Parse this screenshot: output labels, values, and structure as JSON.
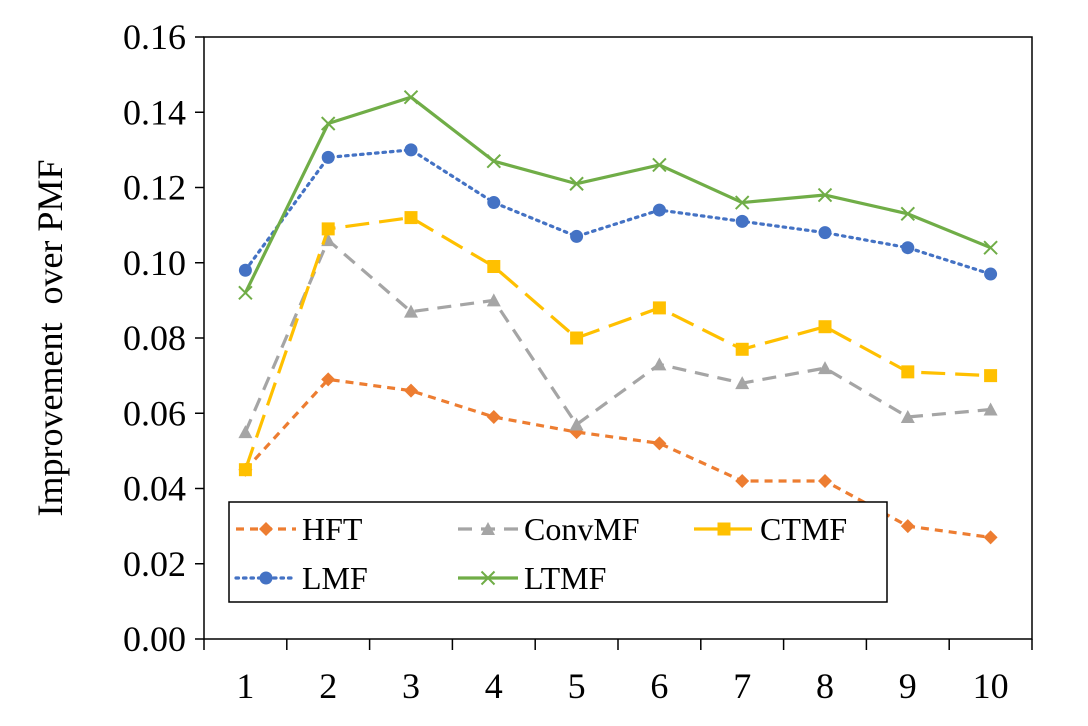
{
  "chart_data": {
    "type": "line",
    "xlabel": "",
    "ylabel": "Improvement  over PMF",
    "categories": [
      "1",
      "2",
      "3",
      "4",
      "5",
      "6",
      "7",
      "8",
      "9",
      "10"
    ],
    "ylim": [
      0,
      0.16
    ],
    "yticks": [
      "0.00",
      "0.02",
      "0.04",
      "0.06",
      "0.08",
      "0.10",
      "0.12",
      "0.14",
      "0.16"
    ],
    "grid": false,
    "legend_position": "bottom-left",
    "series": [
      {
        "name": "HFT",
        "color": "#ED7D31",
        "dash": "short-dash",
        "marker": "diamond",
        "values": [
          0.045,
          0.069,
          0.066,
          0.059,
          0.055,
          0.052,
          0.042,
          0.042,
          0.03,
          0.027
        ]
      },
      {
        "name": "ConvMF",
        "color": "#A5A5A5",
        "dash": "dash",
        "marker": "triangle",
        "values": [
          0.055,
          0.106,
          0.087,
          0.09,
          0.057,
          0.073,
          0.068,
          0.072,
          0.059,
          0.061
        ]
      },
      {
        "name": "CTMF",
        "color": "#FFC000",
        "dash": "long-dash",
        "marker": "square",
        "values": [
          0.045,
          0.109,
          0.112,
          0.099,
          0.08,
          0.088,
          0.077,
          0.083,
          0.071,
          0.07
        ]
      },
      {
        "name": "LMF",
        "color": "#4472C4",
        "dash": "dotted",
        "marker": "circle",
        "values": [
          0.098,
          0.128,
          0.13,
          0.116,
          0.107,
          0.114,
          0.111,
          0.108,
          0.104,
          0.097
        ]
      },
      {
        "name": "LTMF",
        "color": "#70AD47",
        "dash": "solid",
        "marker": "x",
        "values": [
          0.092,
          0.137,
          0.144,
          0.127,
          0.121,
          0.126,
          0.116,
          0.118,
          0.113,
          0.104
        ]
      }
    ]
  }
}
